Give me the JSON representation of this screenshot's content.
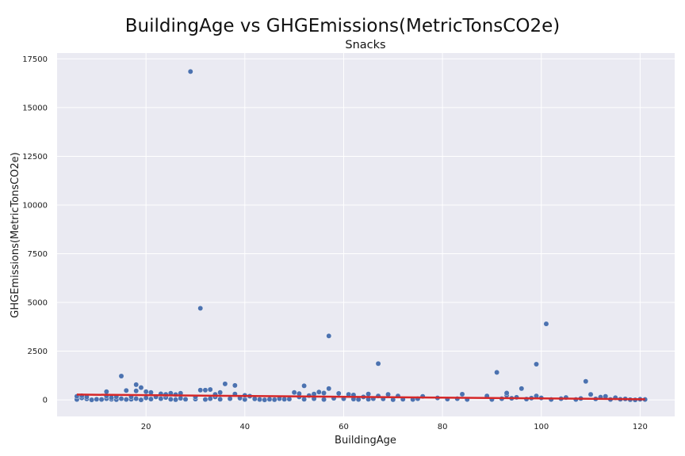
{
  "page": {
    "title": "BuildingAge vs GHGEmissions(MetricTonsCO2e)",
    "subtitle": "Snacks"
  },
  "chart_data": {
    "type": "scatter",
    "title": "BuildingAge vs GHGEmissions(MetricTonsCO2e)",
    "subtitle": "Snacks",
    "xlabel": "BuildingAge",
    "ylabel": "GHGEmissions(MetricTonsCO2e)",
    "xlim": [
      2,
      127
    ],
    "ylim": [
      -850,
      17800
    ],
    "xticks": [
      20,
      40,
      60,
      80,
      100,
      120
    ],
    "yticks": [
      0,
      2500,
      5000,
      7500,
      10000,
      12500,
      15000,
      17500
    ],
    "grid": true,
    "legend": "none",
    "colors": {
      "points": "#4c72b0",
      "trend": "#d62728",
      "background": "#eaeaf2",
      "grid": "#ffffff"
    },
    "trend_line": {
      "x": [
        6,
        121
      ],
      "y": [
        270,
        30
      ]
    },
    "series": [
      {
        "values": [
          [
            6,
            20
          ],
          [
            6,
            180
          ],
          [
            7,
            100
          ],
          [
            7,
            210
          ],
          [
            8,
            50
          ],
          [
            8,
            150
          ],
          [
            9,
            0
          ],
          [
            10,
            30
          ],
          [
            11,
            20
          ],
          [
            12,
            60
          ],
          [
            12,
            200
          ],
          [
            12,
            420
          ],
          [
            13,
            30
          ],
          [
            13,
            110
          ],
          [
            14,
            10
          ],
          [
            14,
            160
          ],
          [
            15,
            60
          ],
          [
            15,
            1220
          ],
          [
            16,
            20
          ],
          [
            16,
            480
          ],
          [
            17,
            30
          ],
          [
            17,
            150
          ],
          [
            18,
            60
          ],
          [
            18,
            460
          ],
          [
            18,
            780
          ],
          [
            19,
            0
          ],
          [
            19,
            630
          ],
          [
            20,
            100
          ],
          [
            20,
            420
          ],
          [
            21,
            40
          ],
          [
            21,
            380
          ],
          [
            22,
            150
          ],
          [
            23,
            60
          ],
          [
            23,
            310
          ],
          [
            24,
            120
          ],
          [
            24,
            280
          ],
          [
            25,
            30
          ],
          [
            25,
            340
          ],
          [
            26,
            10
          ],
          [
            26,
            270
          ],
          [
            27,
            80
          ],
          [
            27,
            340
          ],
          [
            28,
            30
          ],
          [
            29,
            16850
          ],
          [
            30,
            40
          ],
          [
            30,
            150
          ],
          [
            31,
            500
          ],
          [
            31,
            4700
          ],
          [
            32,
            20
          ],
          [
            32,
            500
          ],
          [
            33,
            60
          ],
          [
            33,
            530
          ],
          [
            34,
            150
          ],
          [
            34,
            280
          ],
          [
            35,
            30
          ],
          [
            35,
            380
          ],
          [
            36,
            820
          ],
          [
            37,
            60
          ],
          [
            38,
            300
          ],
          [
            38,
            740
          ],
          [
            39,
            90
          ],
          [
            40,
            20
          ],
          [
            40,
            230
          ],
          [
            41,
            190
          ],
          [
            42,
            50
          ],
          [
            43,
            20
          ],
          [
            44,
            0
          ],
          [
            45,
            30
          ],
          [
            46,
            10
          ],
          [
            47,
            60
          ],
          [
            48,
            30
          ],
          [
            49,
            40
          ],
          [
            50,
            380
          ],
          [
            51,
            150
          ],
          [
            51,
            320
          ],
          [
            52,
            30
          ],
          [
            52,
            720
          ],
          [
            53,
            220
          ],
          [
            54,
            60
          ],
          [
            54,
            300
          ],
          [
            55,
            400
          ],
          [
            56,
            20
          ],
          [
            56,
            350
          ],
          [
            57,
            580
          ],
          [
            57,
            3280
          ],
          [
            58,
            80
          ],
          [
            59,
            330
          ],
          [
            60,
            60
          ],
          [
            61,
            280
          ],
          [
            62,
            40
          ],
          [
            62,
            250
          ],
          [
            63,
            20
          ],
          [
            64,
            150
          ],
          [
            65,
            30
          ],
          [
            65,
            300
          ],
          [
            66,
            60
          ],
          [
            67,
            1860
          ],
          [
            67,
            200
          ],
          [
            68,
            50
          ],
          [
            69,
            280
          ],
          [
            70,
            10
          ],
          [
            71,
            200
          ],
          [
            72,
            30
          ],
          [
            74,
            20
          ],
          [
            75,
            60
          ],
          [
            76,
            180
          ],
          [
            79,
            100
          ],
          [
            81,
            40
          ],
          [
            83,
            60
          ],
          [
            84,
            290
          ],
          [
            85,
            20
          ],
          [
            89,
            200
          ],
          [
            90,
            20
          ],
          [
            91,
            1410
          ],
          [
            92,
            60
          ],
          [
            93,
            240
          ],
          [
            93,
            350
          ],
          [
            94,
            80
          ],
          [
            95,
            130
          ],
          [
            96,
            580
          ],
          [
            97,
            40
          ],
          [
            98,
            90
          ],
          [
            99,
            1830
          ],
          [
            99,
            200
          ],
          [
            100,
            100
          ],
          [
            101,
            3900
          ],
          [
            102,
            20
          ],
          [
            104,
            60
          ],
          [
            105,
            120
          ],
          [
            107,
            20
          ],
          [
            108,
            70
          ],
          [
            109,
            950
          ],
          [
            110,
            280
          ],
          [
            111,
            50
          ],
          [
            112,
            140
          ],
          [
            113,
            180
          ],
          [
            114,
            20
          ],
          [
            115,
            110
          ],
          [
            116,
            30
          ],
          [
            117,
            50
          ],
          [
            118,
            10
          ],
          [
            119,
            0
          ],
          [
            120,
            30
          ],
          [
            121,
            20
          ]
        ]
      }
    ]
  }
}
